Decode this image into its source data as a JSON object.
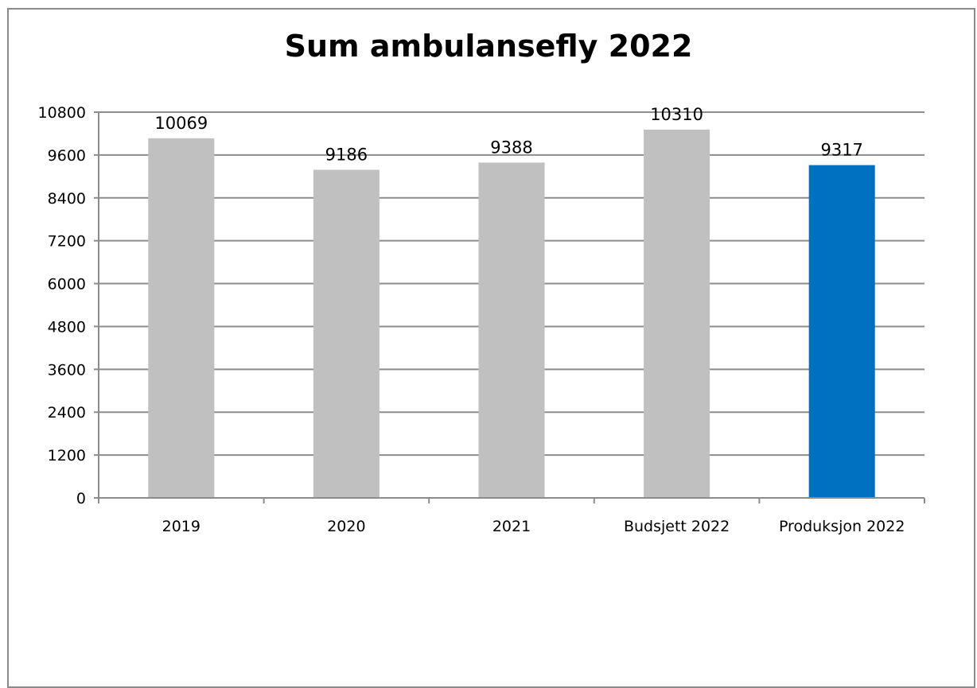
{
  "chart_data": {
    "type": "bar",
    "title": "Sum ambulansefly 2022",
    "xlabel": "",
    "ylabel": "",
    "categories": [
      "2019",
      "2020",
      "2021",
      "Budsjett 2022",
      "Produksjon 2022"
    ],
    "values": [
      10069,
      9186,
      9388,
      10310,
      9317
    ],
    "data_labels": [
      "10069",
      "9186",
      "9388",
      "10310",
      "9317"
    ],
    "bar_colors": [
      "#c0c0c0",
      "#c0c0c0",
      "#c0c0c0",
      "#c0c0c0",
      "#0070c0"
    ],
    "ylim": [
      0,
      10800
    ],
    "yticks": [
      0,
      1200,
      2400,
      3600,
      4800,
      6000,
      7200,
      8400,
      9600,
      10800
    ],
    "grid": true,
    "legend": "none"
  }
}
